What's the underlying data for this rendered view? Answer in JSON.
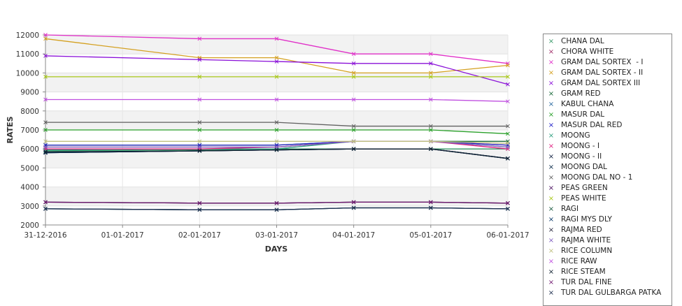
{
  "chart_data": {
    "type": "line",
    "xlabel": "DAYS",
    "ylabel": "RATES",
    "categories": [
      "31-12-2016",
      "01-01-2017",
      "02-01-2017",
      "03-01-2017",
      "04-01-2017",
      "05-01-2017",
      "06-01-2017"
    ],
    "ylim": [
      2000,
      12000
    ],
    "yticks": [
      2000,
      3000,
      4000,
      5000,
      6000,
      7000,
      8000,
      9000,
      10000,
      11000,
      12000
    ],
    "grid": "horizontal alternating bands",
    "legend_position": "right",
    "series": [
      {
        "name": "CHANA DAL",
        "color": "#3a9a6a",
        "values": [
          5900,
          null,
          5950,
          6000,
          6000,
          6000,
          6000
        ]
      },
      {
        "name": "CHORA WHITE",
        "color": "#a0306a",
        "values": [
          6100,
          null,
          6100,
          6100,
          6400,
          6400,
          6200
        ]
      },
      {
        "name": "GRAM DAL SORTEX  - I",
        "color": "#e030c8",
        "values": [
          12000,
          null,
          11800,
          11800,
          11000,
          11000,
          10500
        ]
      },
      {
        "name": "GRAM DAL SORTEX - II",
        "color": "#d4a020",
        "values": [
          11800,
          null,
          10800,
          10800,
          10000,
          10000,
          10400
        ]
      },
      {
        "name": "GRAM DAL SORTEX III",
        "color": "#8a10d8",
        "values": [
          10900,
          null,
          10700,
          10600,
          10500,
          10500,
          9400
        ]
      },
      {
        "name": "GRAM RED",
        "color": "#1a6a3a",
        "values": [
          6200,
          null,
          6200,
          6200,
          6400,
          6400,
          6400
        ]
      },
      {
        "name": "KABUL CHANA",
        "color": "#2a6aa0",
        "values": [
          5800,
          null,
          5900,
          5950,
          6000,
          6000,
          5500
        ]
      },
      {
        "name": "MASUR DAL",
        "color": "#2aa02a",
        "values": [
          7000,
          null,
          7000,
          7000,
          7000,
          7000,
          6800
        ]
      },
      {
        "name": "MASUR DAL RED",
        "color": "#2020c8",
        "values": [
          6200,
          null,
          6200,
          6200,
          6400,
          6400,
          6200
        ]
      },
      {
        "name": "MOONG",
        "color": "#30a080",
        "values": [
          5950,
          null,
          6000,
          6000,
          6400,
          6400,
          6100
        ]
      },
      {
        "name": "MOONG - I",
        "color": "#e02080",
        "values": [
          6000,
          null,
          6000,
          6100,
          6400,
          6400,
          6000
        ]
      },
      {
        "name": "MOONG - II",
        "color": "#102040",
        "values": [
          5800,
          null,
          5900,
          5950,
          6000,
          6000,
          5500
        ]
      },
      {
        "name": "MOONG DAL",
        "color": "#0a2a4a",
        "values": [
          5800,
          null,
          5900,
          5950,
          6000,
          6000,
          5500
        ]
      },
      {
        "name": "MOONG DAL NO - 1",
        "color": "#606060",
        "values": [
          7400,
          null,
          7400,
          7400,
          7200,
          7200,
          7200
        ]
      },
      {
        "name": "PEAS GREEN",
        "color": "#4a1060",
        "values": [
          3200,
          null,
          3150,
          3150,
          3200,
          3200,
          3150
        ]
      },
      {
        "name": "PEAS WHITE",
        "color": "#a8c818",
        "values": [
          9800,
          null,
          9800,
          9800,
          9800,
          9800,
          9800
        ]
      },
      {
        "name": "RAGI",
        "color": "#1a5a40",
        "values": [
          2850,
          null,
          2800,
          2800,
          2900,
          2900,
          2850
        ]
      },
      {
        "name": "RAGI MYS DLY",
        "color": "#0a3a6a",
        "values": [
          2850,
          null,
          2800,
          2800,
          2900,
          2900,
          2850
        ]
      },
      {
        "name": "RAJMA RED",
        "color": "#2a2a40",
        "values": [
          3200,
          null,
          3150,
          3150,
          3200,
          3200,
          3150
        ]
      },
      {
        "name": "RAJMA WHITE",
        "color": "#8060c0",
        "values": [
          6100,
          null,
          6100,
          6100,
          6400,
          6400,
          6100
        ]
      },
      {
        "name": "RICE COLUMN",
        "color": "#c0c080",
        "values": [
          6400,
          null,
          6400,
          6400,
          6400,
          6400,
          6300
        ]
      },
      {
        "name": "RICE RAW",
        "color": "#c050e0",
        "values": [
          8600,
          null,
          8600,
          8600,
          8600,
          8600,
          8500
        ]
      },
      {
        "name": "RICE STEAM",
        "color": "#102030",
        "values": [
          5850,
          null,
          5900,
          5950,
          6000,
          6000,
          5500
        ]
      },
      {
        "name": "TUR DAL FINE",
        "color": "#701870",
        "values": [
          3200,
          null,
          3150,
          3150,
          3200,
          3200,
          3150
        ]
      },
      {
        "name": "TUR DAL GULBARGA PATKA",
        "color": "#203050",
        "values": [
          2850,
          null,
          2800,
          2800,
          2900,
          2900,
          2850
        ]
      }
    ]
  }
}
